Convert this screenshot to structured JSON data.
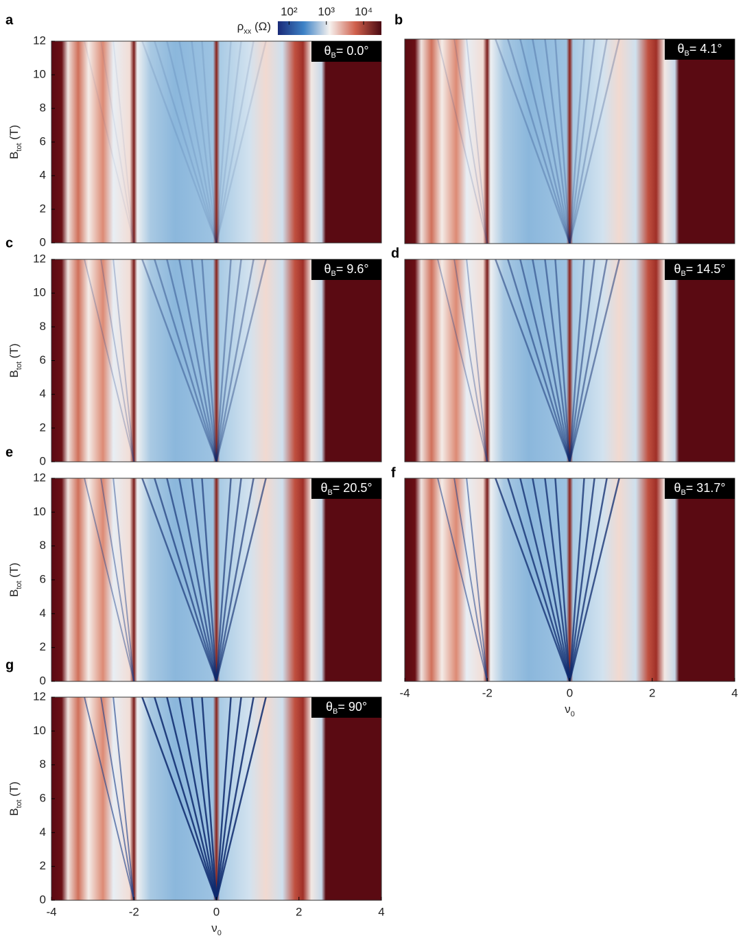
{
  "colorbar": {
    "label": [
      "ρ",
      "xx",
      " (Ω)"
    ],
    "log": true,
    "lim": [
      50,
      30000
    ],
    "ticks": [
      {
        "value": 100,
        "label": "10²"
      },
      {
        "value": 1000,
        "label": "10³"
      },
      {
        "value": 10000,
        "label": "10⁴"
      }
    ]
  },
  "chart_data": [
    {
      "type": "heatmap",
      "panel": "a",
      "annotation": [
        "θ",
        "B",
        "= 0.0°"
      ],
      "xlim": [
        -4,
        4
      ],
      "ylim": [
        0,
        12
      ],
      "ylabel": [
        "B",
        "tot",
        " (T)"
      ],
      "yticks": [
        0,
        2,
        4,
        6,
        8,
        10,
        12
      ]
    },
    {
      "type": "heatmap",
      "panel": "b",
      "annotation": [
        "θ",
        "B",
        "= 4.1°"
      ],
      "xlim": [
        -4,
        4
      ],
      "ylim": [
        0,
        12
      ]
    },
    {
      "type": "heatmap",
      "panel": "c",
      "annotation": [
        "θ",
        "B",
        "= 9.6°"
      ],
      "xlim": [
        -4,
        4
      ],
      "ylim": [
        0,
        12
      ],
      "ylabel": [
        "B",
        "tot",
        " (T)"
      ],
      "yticks": [
        0,
        2,
        4,
        6,
        8,
        10,
        12
      ]
    },
    {
      "type": "heatmap",
      "panel": "d",
      "annotation": [
        "θ",
        "B",
        "= 14.5°"
      ],
      "xlim": [
        -4,
        4
      ],
      "ylim": [
        0,
        12
      ]
    },
    {
      "type": "heatmap",
      "panel": "e",
      "annotation": [
        "θ",
        "B",
        "= 20.5°"
      ],
      "xlim": [
        -4,
        4
      ],
      "ylim": [
        0,
        12
      ],
      "ylabel": [
        "B",
        "tot",
        " (T)"
      ],
      "yticks": [
        0,
        2,
        4,
        6,
        8,
        10,
        12
      ]
    },
    {
      "type": "heatmap",
      "panel": "f",
      "annotation": [
        "θ",
        "B",
        "= 31.7°"
      ],
      "xlim": [
        -4,
        4
      ],
      "ylim": [
        0,
        12
      ],
      "xlabel": [
        "ν",
        "0"
      ],
      "xticks": [
        -4,
        -2,
        0,
        2,
        4
      ]
    },
    {
      "type": "heatmap",
      "panel": "g",
      "annotation": [
        "θ",
        "B",
        "= 90°"
      ],
      "xlim": [
        -4,
        4
      ],
      "ylim": [
        0,
        12
      ],
      "ylabel": [
        "B",
        "tot",
        " (T)"
      ],
      "yticks": [
        0,
        2,
        4,
        6,
        8,
        10,
        12
      ],
      "xlabel": [
        "ν",
        "0"
      ],
      "xticks": [
        -4,
        -2,
        0,
        2,
        4
      ]
    }
  ]
}
